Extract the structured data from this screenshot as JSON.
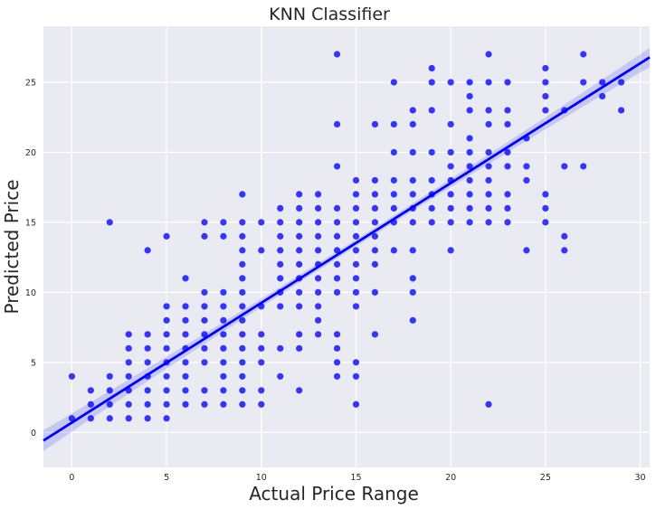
{
  "chart_data": {
    "type": "scatter",
    "title": "KNN Classifier",
    "xlabel": "Actual Price Range",
    "ylabel": "Predicted Price",
    "xlim": [
      -1.5,
      30.5
    ],
    "ylim": [
      -2.5,
      29
    ],
    "xticks": [
      0,
      5,
      10,
      15,
      20,
      25,
      30
    ],
    "yticks": [
      0,
      5,
      10,
      15,
      20,
      25
    ],
    "grid": true,
    "colors": {
      "background": "#eaeaf2",
      "grid": "#ffffff",
      "points": "#0000ff",
      "band": "#0000ff"
    },
    "points": [
      [
        0,
        1
      ],
      [
        0,
        4
      ],
      [
        1,
        1
      ],
      [
        1,
        2
      ],
      [
        1,
        3
      ],
      [
        2,
        1
      ],
      [
        2,
        2
      ],
      [
        2,
        3
      ],
      [
        2,
        4
      ],
      [
        2,
        15
      ],
      [
        3,
        1
      ],
      [
        3,
        2
      ],
      [
        3,
        3
      ],
      [
        3,
        4
      ],
      [
        3,
        5
      ],
      [
        3,
        6
      ],
      [
        3,
        7
      ],
      [
        4,
        1
      ],
      [
        4,
        2
      ],
      [
        4,
        3
      ],
      [
        4,
        4
      ],
      [
        4,
        5
      ],
      [
        4,
        6
      ],
      [
        4,
        7
      ],
      [
        4,
        13
      ],
      [
        5,
        1
      ],
      [
        5,
        2
      ],
      [
        5,
        3
      ],
      [
        5,
        4
      ],
      [
        5,
        5
      ],
      [
        5,
        6
      ],
      [
        5,
        7
      ],
      [
        5,
        8
      ],
      [
        5,
        9
      ],
      [
        5,
        14
      ],
      [
        6,
        2
      ],
      [
        6,
        3
      ],
      [
        6,
        4
      ],
      [
        6,
        5
      ],
      [
        6,
        6
      ],
      [
        6,
        7
      ],
      [
        6,
        8
      ],
      [
        6,
        9
      ],
      [
        6,
        11
      ],
      [
        7,
        2
      ],
      [
        7,
        3
      ],
      [
        7,
        5
      ],
      [
        7,
        6
      ],
      [
        7,
        7
      ],
      [
        7,
        8
      ],
      [
        7,
        9
      ],
      [
        7,
        10
      ],
      [
        7,
        14
      ],
      [
        7,
        15
      ],
      [
        8,
        2
      ],
      [
        8,
        3
      ],
      [
        8,
        4
      ],
      [
        8,
        5
      ],
      [
        8,
        6
      ],
      [
        8,
        7
      ],
      [
        8,
        8
      ],
      [
        8,
        9
      ],
      [
        8,
        10
      ],
      [
        8,
        14
      ],
      [
        8,
        15
      ],
      [
        9,
        2
      ],
      [
        9,
        3
      ],
      [
        9,
        4
      ],
      [
        9,
        5
      ],
      [
        9,
        6
      ],
      [
        9,
        7
      ],
      [
        9,
        8
      ],
      [
        9,
        9
      ],
      [
        9,
        10
      ],
      [
        9,
        11
      ],
      [
        9,
        12
      ],
      [
        9,
        13
      ],
      [
        9,
        14
      ],
      [
        9,
        15
      ],
      [
        9,
        17
      ],
      [
        10,
        2
      ],
      [
        10,
        3
      ],
      [
        10,
        5
      ],
      [
        10,
        6
      ],
      [
        10,
        7
      ],
      [
        10,
        9
      ],
      [
        10,
        13
      ],
      [
        10,
        15
      ],
      [
        11,
        4
      ],
      [
        11,
        6
      ],
      [
        11,
        9
      ],
      [
        11,
        10
      ],
      [
        11,
        11
      ],
      [
        11,
        12
      ],
      [
        11,
        13
      ],
      [
        11,
        14
      ],
      [
        11,
        15
      ],
      [
        11,
        16
      ],
      [
        12,
        3
      ],
      [
        12,
        6
      ],
      [
        12,
        7
      ],
      [
        12,
        9
      ],
      [
        12,
        10
      ],
      [
        12,
        11
      ],
      [
        12,
        12
      ],
      [
        12,
        13
      ],
      [
        12,
        14
      ],
      [
        12,
        15
      ],
      [
        12,
        16
      ],
      [
        12,
        17
      ],
      [
        13,
        7
      ],
      [
        13,
        8
      ],
      [
        13,
        9
      ],
      [
        13,
        10
      ],
      [
        13,
        11
      ],
      [
        13,
        12
      ],
      [
        13,
        13
      ],
      [
        13,
        14
      ],
      [
        13,
        15
      ],
      [
        13,
        16
      ],
      [
        13,
        17
      ],
      [
        14,
        4
      ],
      [
        14,
        5
      ],
      [
        14,
        6
      ],
      [
        14,
        7
      ],
      [
        14,
        10
      ],
      [
        14,
        11
      ],
      [
        14,
        12
      ],
      [
        14,
        13
      ],
      [
        14,
        14
      ],
      [
        14,
        15
      ],
      [
        14,
        16
      ],
      [
        14,
        19
      ],
      [
        14,
        22
      ],
      [
        14,
        27
      ],
      [
        15,
        2
      ],
      [
        15,
        4
      ],
      [
        15,
        5
      ],
      [
        15,
        9
      ],
      [
        15,
        10
      ],
      [
        15,
        11
      ],
      [
        15,
        12
      ],
      [
        15,
        13
      ],
      [
        15,
        14
      ],
      [
        15,
        15
      ],
      [
        15,
        16
      ],
      [
        15,
        17
      ],
      [
        15,
        18
      ],
      [
        16,
        7
      ],
      [
        16,
        10
      ],
      [
        16,
        12
      ],
      [
        16,
        13
      ],
      [
        16,
        14
      ],
      [
        16,
        15
      ],
      [
        16,
        16
      ],
      [
        16,
        17
      ],
      [
        16,
        18
      ],
      [
        16,
        22
      ],
      [
        17,
        13
      ],
      [
        17,
        15
      ],
      [
        17,
        16
      ],
      [
        17,
        17
      ],
      [
        17,
        18
      ],
      [
        17,
        20
      ],
      [
        17,
        22
      ],
      [
        17,
        25
      ],
      [
        18,
        8
      ],
      [
        18,
        10
      ],
      [
        18,
        11
      ],
      [
        18,
        13
      ],
      [
        18,
        15
      ],
      [
        18,
        16
      ],
      [
        18,
        17
      ],
      [
        18,
        18
      ],
      [
        18,
        20
      ],
      [
        18,
        22
      ],
      [
        18,
        23
      ],
      [
        19,
        15
      ],
      [
        19,
        16
      ],
      [
        19,
        17
      ],
      [
        19,
        18
      ],
      [
        19,
        20
      ],
      [
        19,
        23
      ],
      [
        19,
        25
      ],
      [
        19,
        26
      ],
      [
        20,
        13
      ],
      [
        20,
        15
      ],
      [
        20,
        16
      ],
      [
        20,
        17
      ],
      [
        20,
        18
      ],
      [
        20,
        19
      ],
      [
        20,
        20
      ],
      [
        20,
        22
      ],
      [
        20,
        25
      ],
      [
        21,
        15
      ],
      [
        21,
        16
      ],
      [
        21,
        17
      ],
      [
        21,
        18
      ],
      [
        21,
        19
      ],
      [
        21,
        20
      ],
      [
        21,
        21
      ],
      [
        21,
        23
      ],
      [
        21,
        24
      ],
      [
        21,
        25
      ],
      [
        22,
        2
      ],
      [
        22,
        15
      ],
      [
        22,
        16
      ],
      [
        22,
        17
      ],
      [
        22,
        18
      ],
      [
        22,
        19
      ],
      [
        22,
        20
      ],
      [
        22,
        22
      ],
      [
        22,
        23
      ],
      [
        22,
        25
      ],
      [
        22,
        27
      ],
      [
        23,
        15
      ],
      [
        23,
        16
      ],
      [
        23,
        17
      ],
      [
        23,
        19
      ],
      [
        23,
        20
      ],
      [
        23,
        22
      ],
      [
        23,
        23
      ],
      [
        23,
        25
      ],
      [
        24,
        13
      ],
      [
        24,
        18
      ],
      [
        24,
        19
      ],
      [
        24,
        21
      ],
      [
        25,
        15
      ],
      [
        25,
        16
      ],
      [
        25,
        17
      ],
      [
        25,
        23
      ],
      [
        25,
        24
      ],
      [
        25,
        25
      ],
      [
        25,
        26
      ],
      [
        26,
        13
      ],
      [
        26,
        14
      ],
      [
        26,
        19
      ],
      [
        26,
        23
      ],
      [
        27,
        19
      ],
      [
        27,
        25
      ],
      [
        27,
        27
      ],
      [
        28,
        24
      ],
      [
        28,
        25
      ],
      [
        29,
        23
      ],
      [
        29,
        25
      ]
    ],
    "regression": {
      "intercept": 0.7,
      "slope": 0.855
    }
  }
}
